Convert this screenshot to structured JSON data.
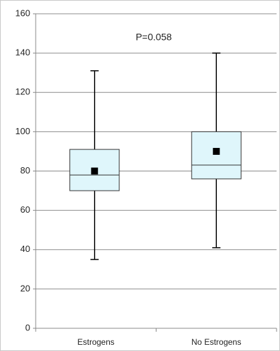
{
  "chart_data": {
    "type": "box",
    "annotation": "P=0.058",
    "categories": [
      "Estrogens",
      "No Estrogens"
    ],
    "boxes": [
      {
        "whislo": 35,
        "q1": 70,
        "median": 78,
        "q3": 91,
        "whishi": 131,
        "mean": 80
      },
      {
        "whislo": 41,
        "q1": 76,
        "median": 83,
        "q3": 100,
        "whishi": 140,
        "mean": 90
      }
    ],
    "color": "#dff6fb",
    "ylim": [
      0,
      160
    ],
    "yticks": [
      0,
      20,
      40,
      60,
      80,
      100,
      120,
      140,
      160
    ],
    "grid": true
  }
}
